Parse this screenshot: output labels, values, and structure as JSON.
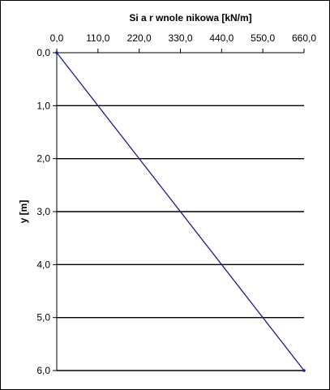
{
  "chart_data": {
    "type": "line",
    "title": "Si a r  wnole  nikowa [kN/m]",
    "xlabel": "Si a r  wnole  nikowa [kN/m]",
    "ylabel": "y [m]",
    "xlim": [
      0,
      660
    ],
    "ylim": [
      0,
      6
    ],
    "x_axis_position": "top",
    "y_axis_inverted": true,
    "x_ticks": [
      "0,0",
      "110,0",
      "220,0",
      "330,0",
      "440,0",
      "550,0",
      "660,0"
    ],
    "x_tick_values": [
      0,
      110,
      220,
      330,
      440,
      550,
      660
    ],
    "y_ticks": [
      "0,0",
      "1,0",
      "2,0",
      "3,0",
      "4,0",
      "5,0",
      "6,0"
    ],
    "y_tick_values": [
      0,
      1,
      2,
      3,
      4,
      5,
      6
    ],
    "grid": "horizontal",
    "legend": "none",
    "series": [
      {
        "color": "#1c1c8c",
        "x": [
          0,
          660
        ],
        "y": [
          0,
          6
        ]
      }
    ]
  }
}
